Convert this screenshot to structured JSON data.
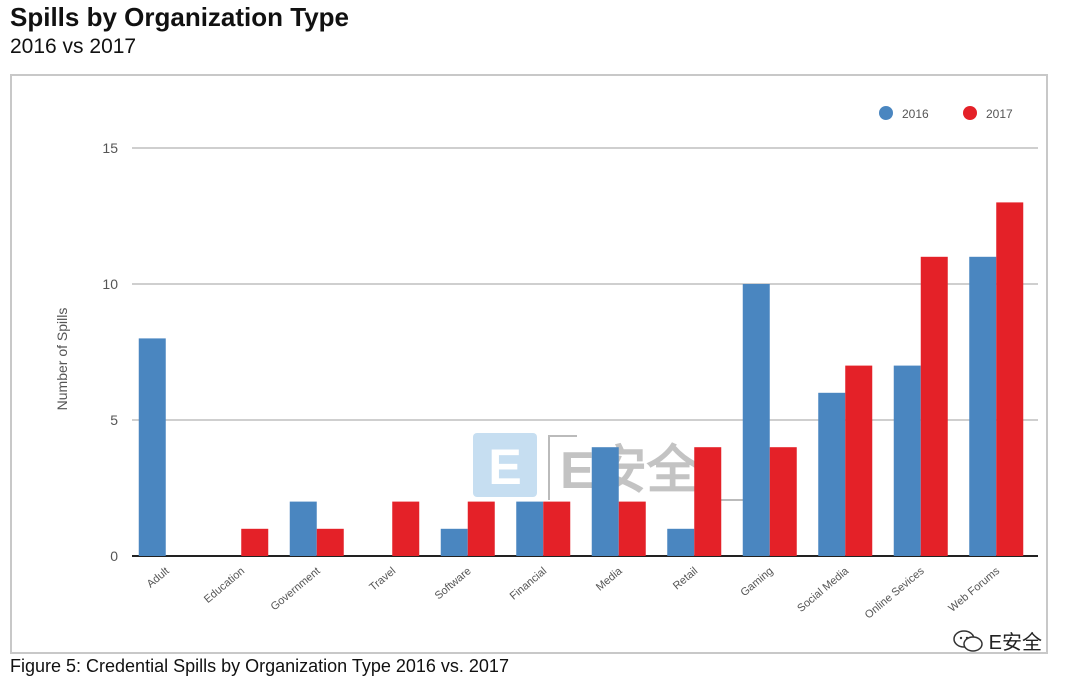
{
  "header": {
    "title": "Spills by Organization Type",
    "subtitle": "2016 vs 2017"
  },
  "caption": "Figure 5: Credential Spills by Organization Type 2016 vs. 2017",
  "watermark": {
    "center_text": "E安全",
    "corner_text": "E安全",
    "letter": "E"
  },
  "colors": {
    "series_2016": "#4a86c0",
    "series_2017": "#e42128",
    "grid": "#cfcfcf",
    "axis": "#222222",
    "tick_text": "#555555"
  },
  "chart_data": {
    "type": "bar",
    "title": "Spills by Organization Type",
    "subtitle": "2016 vs 2017",
    "xlabel": "",
    "ylabel": "Number of Spills",
    "ylim": [
      0,
      15
    ],
    "yticks": [
      0,
      5,
      10,
      15
    ],
    "grid": true,
    "legend_position": "top-right",
    "categories": [
      "Adult",
      "Education",
      "Government",
      "Travel",
      "Software",
      "Financial",
      "Media",
      "Retail",
      "Gaming",
      "Social Media",
      "Online Sevices",
      "Web Forums"
    ],
    "series": [
      {
        "name": "2016",
        "values": [
          8,
          0,
          2,
          0,
          1,
          2,
          4,
          1,
          10,
          6,
          7,
          11
        ]
      },
      {
        "name": "2017",
        "values": [
          0,
          1,
          1,
          2,
          2,
          2,
          2,
          4,
          4,
          7,
          11,
          13
        ]
      }
    ]
  }
}
